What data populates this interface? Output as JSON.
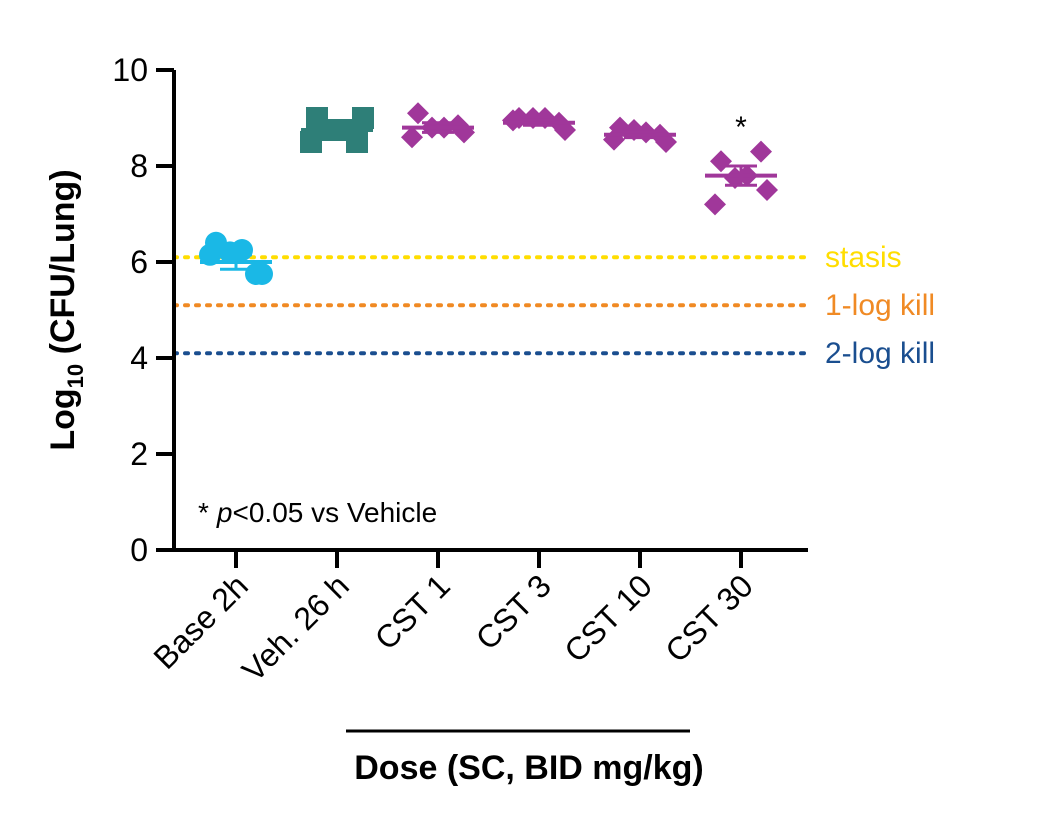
{
  "chart_data": {
    "type": "scatter",
    "ylabel_main": "Log",
    "ylabel_sub": "10",
    "ylabel_rest": " (CFU/Lung)",
    "xlabel": "Dose (SC, BID mg/kg)",
    "ylim": [
      0,
      10
    ],
    "yticks": [
      "0",
      "2",
      "4",
      "6",
      "8",
      "10"
    ],
    "categories": [
      "Base 2h",
      "Veh. 26 h",
      "CST 1",
      "CST 3",
      "CST 10",
      "CST 30"
    ],
    "groups": [
      {
        "category": "Base 2h",
        "marker": "circle",
        "color": "#1ab8e6",
        "mean": 6.0,
        "sem": 0.15,
        "points": [
          6.4,
          6.15,
          6.2,
          6.25,
          5.75,
          5.75
        ]
      },
      {
        "category": "Veh. 26 h",
        "marker": "square",
        "color": "#2e7f78",
        "mean": 8.75,
        "sem": 0.08,
        "points": [
          9.0,
          8.5,
          8.75,
          8.75,
          9.0,
          8.5
        ]
      },
      {
        "category": "CST 1",
        "marker": "diamond",
        "color": "#a0379a",
        "mean": 8.8,
        "sem": 0.1,
        "points": [
          9.1,
          8.6,
          8.8,
          8.8,
          8.7,
          8.85
        ]
      },
      {
        "category": "CST 3",
        "marker": "diamond",
        "color": "#a0379a",
        "mean": 8.9,
        "sem": 0.05,
        "points": [
          9.0,
          8.95,
          9.0,
          9.0,
          8.75,
          8.9
        ]
      },
      {
        "category": "CST 10",
        "marker": "diamond",
        "color": "#a0379a",
        "mean": 8.65,
        "sem": 0.06,
        "points": [
          8.8,
          8.55,
          8.75,
          8.7,
          8.5,
          8.65
        ]
      },
      {
        "category": "CST 30",
        "marker": "diamond",
        "color": "#a0379a",
        "mean": 7.8,
        "sem": 0.2,
        "points": [
          8.1,
          7.2,
          7.75,
          7.8,
          7.5,
          8.3
        ]
      }
    ],
    "reference_lines": [
      {
        "label": "stasis",
        "y": 6.1,
        "color": "#ffdd00"
      },
      {
        "label": "1-log kill",
        "y": 5.1,
        "color": "#f08a24"
      },
      {
        "label": "2-log kill",
        "y": 4.1,
        "color": "#1a4e8f"
      }
    ],
    "significance_marker": {
      "category": "CST 30",
      "text": "*"
    },
    "annotation": {
      "star": "*",
      "p": "p",
      "rest": "<0.05 vs Vehicle"
    }
  }
}
